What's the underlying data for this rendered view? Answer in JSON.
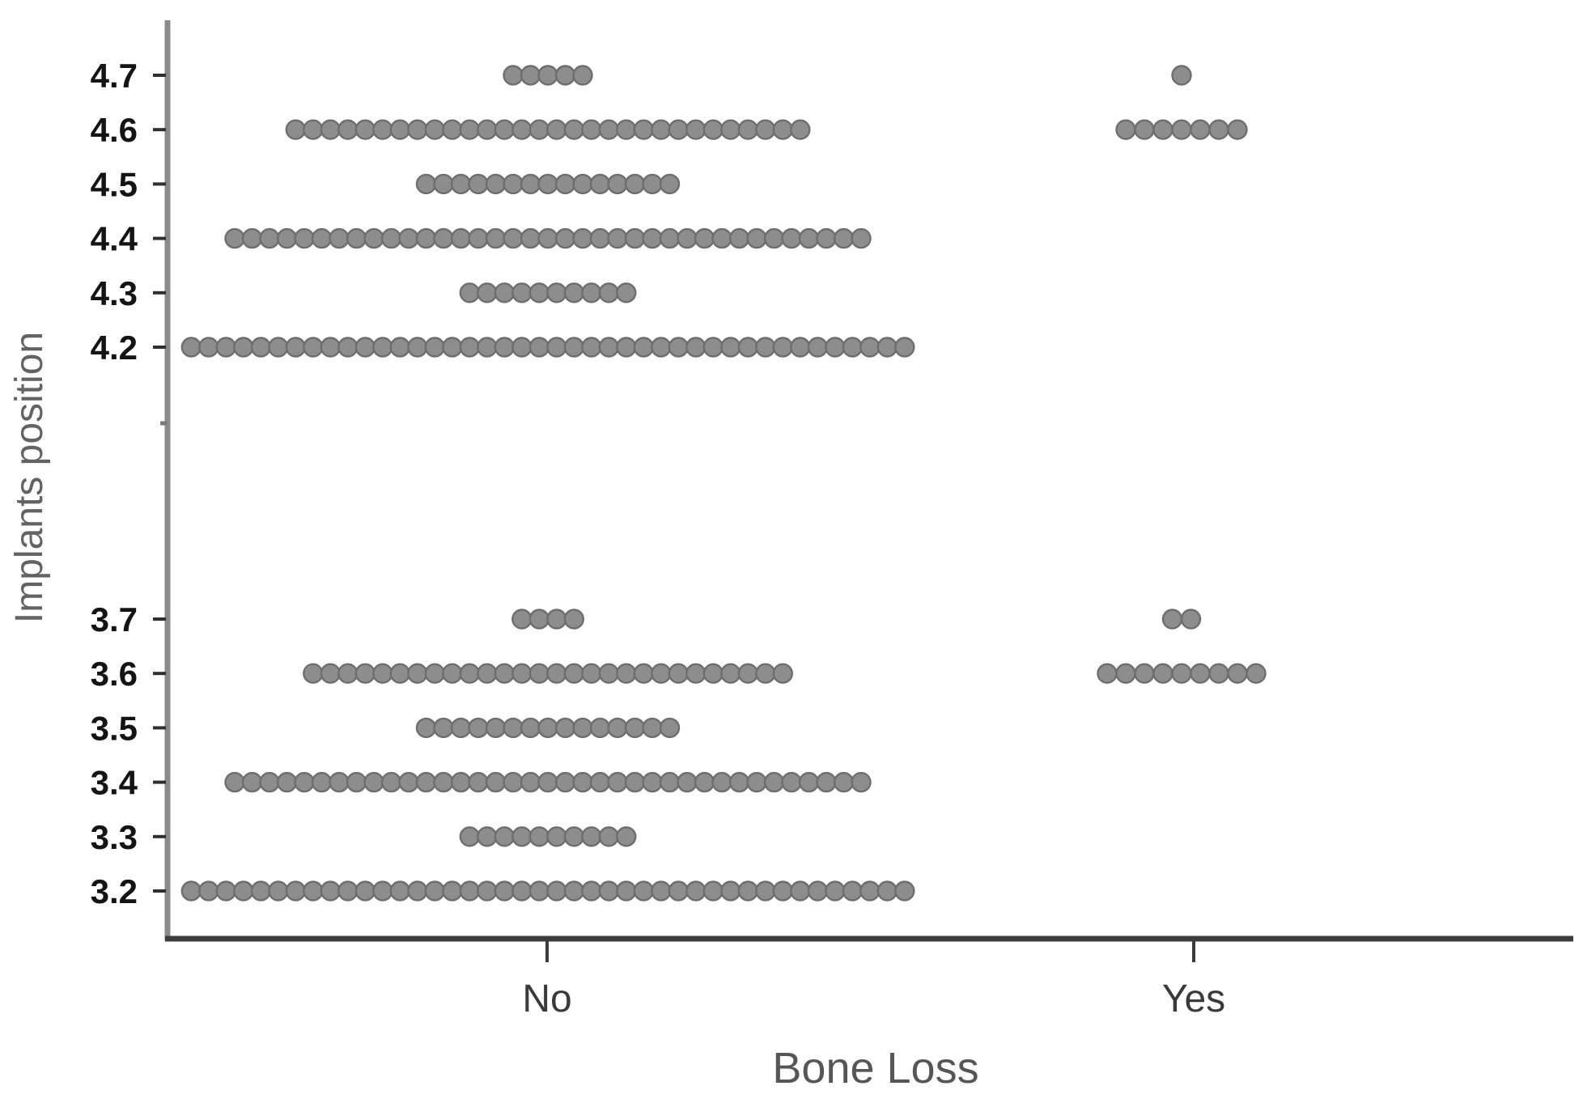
{
  "chart_data": {
    "type": "scatter",
    "subtype": "dot-strip-plot",
    "title": "",
    "xlabel": "Bone Loss",
    "ylabel": "Implants position",
    "categories": [
      "No",
      "Yes"
    ],
    "y_ticks": [
      4.7,
      4.6,
      4.5,
      4.4,
      4.3,
      4.2,
      3.7,
      3.6,
      3.5,
      3.4,
      3.3,
      3.2
    ],
    "y_tick_labels": [
      "4.7",
      "4.6",
      "4.5",
      "4.4",
      "4.3",
      "4.2",
      "3.7",
      "3.6",
      "3.5",
      "3.4",
      "3.3",
      "3.2"
    ],
    "has_unlabeled_minor_tick": true,
    "grid": false,
    "legend": "none",
    "series": [
      {
        "name": "No",
        "counts": {
          "4.7": 5,
          "4.6": 30,
          "4.5": 15,
          "4.4": 37,
          "4.3": 10,
          "4.2": 42,
          "3.7": 4,
          "3.6": 28,
          "3.5": 15,
          "3.4": 37,
          "3.3": 10,
          "3.2": 42
        }
      },
      {
        "name": "Yes",
        "counts": {
          "4.7": 1,
          "4.6": 7,
          "3.7": 2,
          "3.6": 9
        }
      }
    ],
    "colors": {
      "dot_fill": "#8d8d8d",
      "dot_stroke": "#6e6e6e",
      "y_axis": "#8a8a8a",
      "x_axis": "#3c3c3c",
      "tick": "#2f2f2f",
      "minor_tick": "#7a7a7a",
      "background": "#ffffff"
    }
  }
}
